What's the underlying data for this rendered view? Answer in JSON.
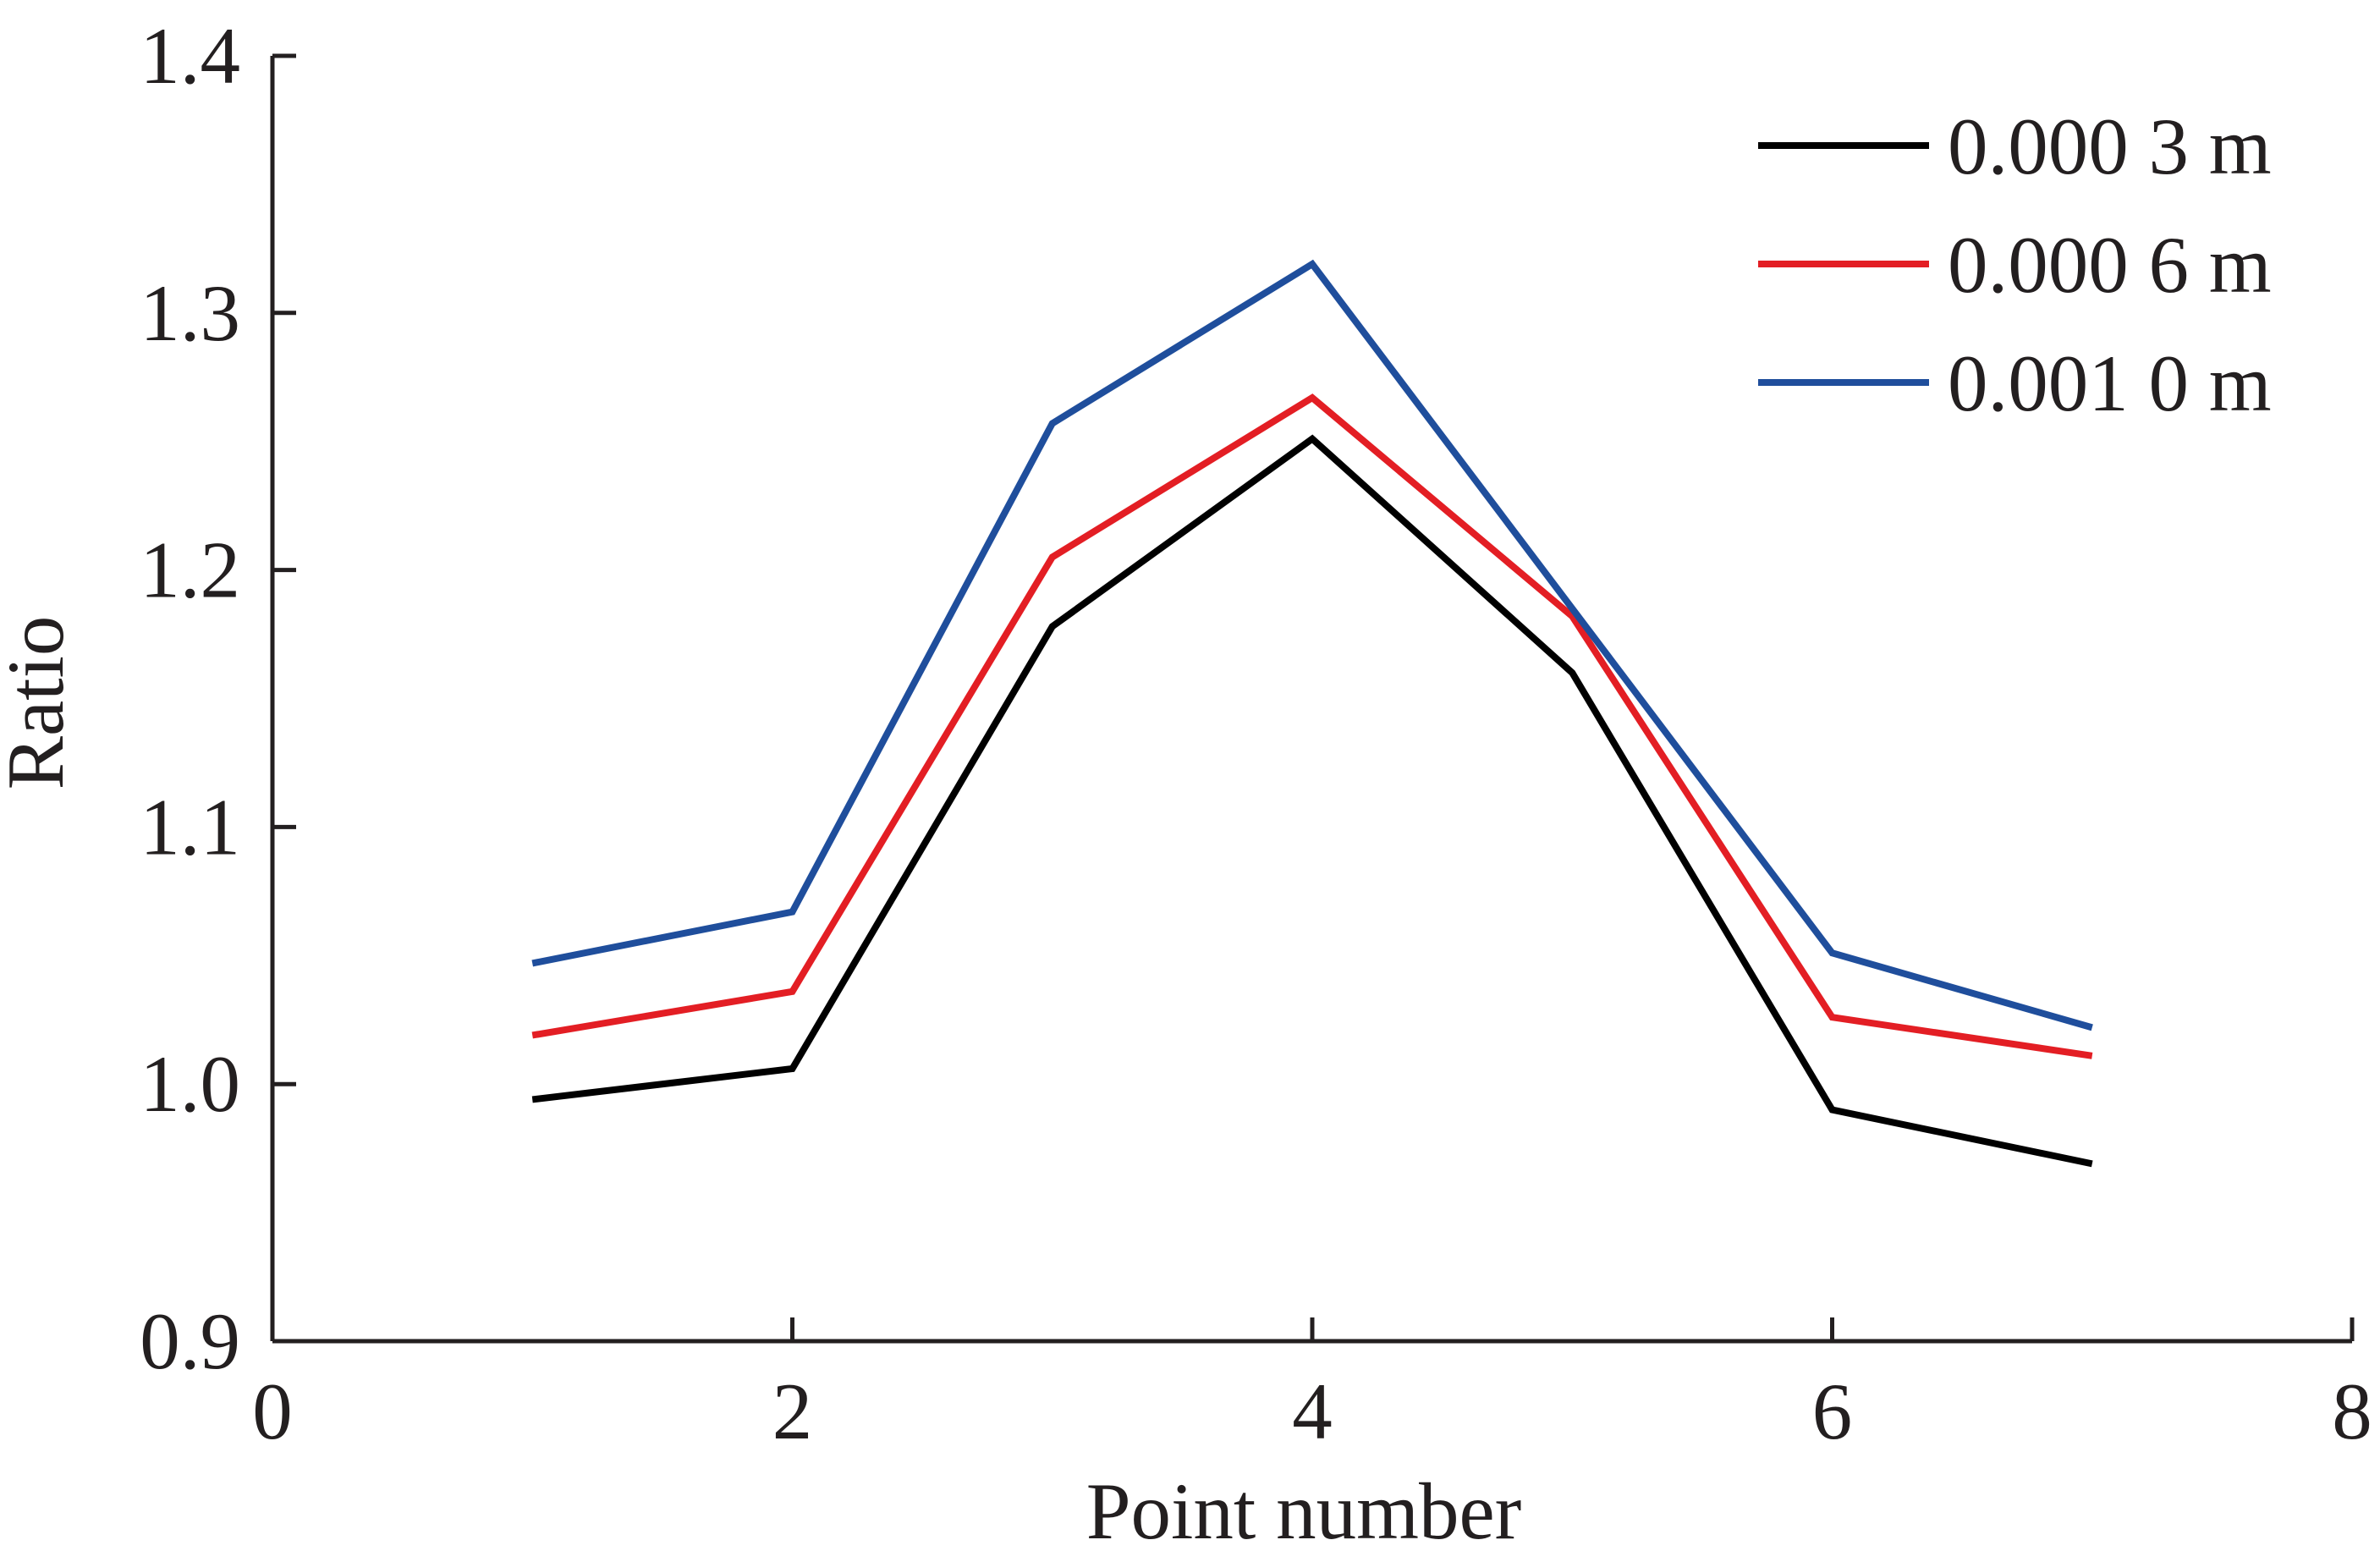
{
  "chart_data": {
    "type": "line",
    "xlabel": "Point number",
    "ylabel": "Ratio",
    "xlim": [
      0,
      8
    ],
    "ylim": [
      0.9,
      1.4
    ],
    "xticks": [
      0,
      2,
      4,
      6,
      8
    ],
    "xtick_labels": [
      "0",
      "2",
      "4",
      "6",
      "8"
    ],
    "yticks": [
      0.9,
      1.0,
      1.1,
      1.2,
      1.3,
      1.4
    ],
    "ytick_labels": [
      "0.9",
      "1.0",
      "1.1",
      "1.2",
      "1.3",
      "1.4"
    ],
    "grid": false,
    "legend_position": "top-right",
    "x": [
      1,
      2,
      3,
      4,
      5,
      6,
      7
    ],
    "series": [
      {
        "name": "0.000 3 m",
        "color": "#000000",
        "values": [
          0.994,
          1.006,
          1.178,
          1.251,
          1.16,
          0.99,
          0.969
        ]
      },
      {
        "name": "0.000 6 m",
        "color": "#e31e24",
        "values": [
          1.019,
          1.036,
          1.205,
          1.267,
          1.182,
          1.026,
          1.011
        ]
      },
      {
        "name": "0.001 0 m",
        "color": "#1f4e9c",
        "values": [
          1.047,
          1.067,
          1.257,
          1.319,
          1.185,
          1.051,
          1.022
        ]
      }
    ]
  }
}
